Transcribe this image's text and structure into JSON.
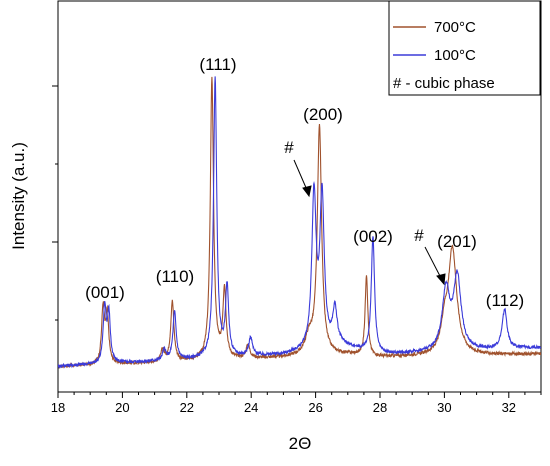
{
  "chart_data": {
    "type": "line",
    "title": "",
    "xlabel": "2Θ",
    "ylabel": "Intensity (a.u.)",
    "xlim": [
      18,
      33
    ],
    "ylim": [
      0,
      100
    ],
    "x_ticks": [
      18,
      20,
      22,
      24,
      26,
      28,
      30,
      32
    ],
    "y_ticks_labeled": false,
    "legend_position": "top-right",
    "legend_note": "# - cubic phase",
    "series": [
      {
        "name": "700°C",
        "color": "#a0522d",
        "peaks": [
          {
            "x": 19.4,
            "h": 18.5,
            "w": 0.055
          },
          {
            "x": 19.53,
            "h": 16,
            "w": 0.055
          },
          {
            "x": 21.25,
            "h": 4,
            "w": 0.06
          },
          {
            "x": 21.55,
            "h": 20,
            "w": 0.06
          },
          {
            "x": 22.78,
            "h": 94,
            "w": 0.06
          },
          {
            "x": 23.17,
            "h": 23,
            "w": 0.06
          },
          {
            "x": 23.9,
            "h": 4.5,
            "w": 0.07
          },
          {
            "x": 26.12,
            "h": 76,
            "w": 0.08
          },
          {
            "x": 25.8,
            "h": 6,
            "w": 0.15
          },
          {
            "x": 27.58,
            "h": 27,
            "w": 0.05
          },
          {
            "x": 30.0,
            "h": 8,
            "w": 0.12
          },
          {
            "x": 30.25,
            "h": 35,
            "w": 0.16
          }
        ],
        "baseline": [
          [
            18,
            1.2
          ],
          [
            26,
            4.5
          ],
          [
            27,
            5
          ],
          [
            28,
            4.2
          ],
          [
            33,
            5.3
          ]
        ]
      },
      {
        "name": "100°C",
        "color": "#3b3bd9",
        "peaks": [
          {
            "x": 19.45,
            "h": 18.5,
            "w": 0.055
          },
          {
            "x": 19.58,
            "h": 16,
            "w": 0.055
          },
          {
            "x": 21.3,
            "h": 3.5,
            "w": 0.06
          },
          {
            "x": 21.62,
            "h": 16,
            "w": 0.06
          },
          {
            "x": 22.88,
            "h": 93,
            "w": 0.06
          },
          {
            "x": 23.25,
            "h": 23,
            "w": 0.06
          },
          {
            "x": 23.98,
            "h": 6,
            "w": 0.07
          },
          {
            "x": 25.95,
            "h": 51,
            "w": 0.08
          },
          {
            "x": 26.2,
            "h": 50,
            "w": 0.08
          },
          {
            "x": 26.6,
            "h": 12,
            "w": 0.08
          },
          {
            "x": 27.78,
            "h": 39,
            "w": 0.06
          },
          {
            "x": 30.05,
            "h": 20,
            "w": 0.14
          },
          {
            "x": 30.4,
            "h": 24,
            "w": 0.14
          },
          {
            "x": 31.87,
            "h": 13,
            "w": 0.09
          }
        ],
        "baseline": [
          [
            18,
            1.3
          ],
          [
            25,
            5
          ],
          [
            26.8,
            8
          ],
          [
            28,
            5
          ],
          [
            33,
            7.5
          ]
        ]
      }
    ],
    "annotations": [
      {
        "text": "(001)",
        "x": 19.5
      },
      {
        "text": "(110)",
        "x": 21.5
      },
      {
        "text": "(111)",
        "x": 22.8
      },
      {
        "text": "(200)",
        "x": 26.1
      },
      {
        "text": "(002)",
        "x": 27.6
      },
      {
        "text": "(201)",
        "x": 30.2
      },
      {
        "text": "(112)",
        "x": 31.9
      },
      {
        "text": "#",
        "x": 25.9
      },
      {
        "text": "#",
        "x": 30.0
      }
    ]
  }
}
